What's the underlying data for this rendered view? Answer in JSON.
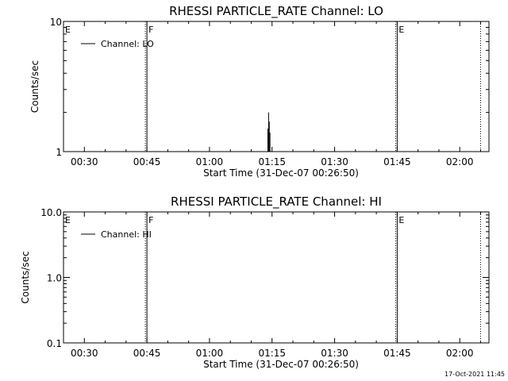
{
  "chart_data": [
    {
      "type": "line",
      "title": "RHESSI PARTICLE_RATE Channel: LO",
      "xlabel": "Start Time (31-Dec-07 00:26:50)",
      "ylabel": "Counts/sec",
      "yscale": "log",
      "ylim": [
        1,
        10
      ],
      "xlim": [
        "00:25",
        "02:07"
      ],
      "x_ticks": [
        "00:30",
        "00:45",
        "01:00",
        "01:15",
        "01:30",
        "01:45",
        "02:00"
      ],
      "y_ticks": [
        "1",
        "10"
      ],
      "legend_entry": "Channel: LO",
      "legend_position": "top-left",
      "series": [
        {
          "x": [
            "01:13:50",
            "01:14:00",
            "01:14:10",
            "01:14:20",
            "01:14:30",
            "01:14:40"
          ],
          "values": [
            1,
            1.5,
            2,
            1.7,
            1.4,
            1
          ]
        }
      ],
      "markers": [
        {
          "time": "00:25",
          "label": "E",
          "style": "dotted"
        },
        {
          "time": "00:45",
          "label": "F",
          "style": "solid"
        },
        {
          "time": "01:45",
          "label": "E",
          "style": "solid"
        },
        {
          "time": "02:05",
          "label": "",
          "style": "dotted"
        }
      ]
    },
    {
      "type": "line",
      "title": "RHESSI PARTICLE_RATE Channel: HI",
      "xlabel": "Start Time (31-Dec-07 00:26:50)",
      "ylabel": "Counts/sec",
      "yscale": "log",
      "ylim": [
        0.1,
        10
      ],
      "xlim": [
        "00:25",
        "02:07"
      ],
      "x_ticks": [
        "00:30",
        "00:45",
        "01:00",
        "01:15",
        "01:30",
        "01:45",
        "02:00"
      ],
      "y_ticks": [
        "0.1",
        "1.0",
        "10.0"
      ],
      "legend_entry": "Channel: HI",
      "legend_position": "top-left",
      "series": [],
      "markers": [
        {
          "time": "00:25",
          "label": "E",
          "style": "dotted"
        },
        {
          "time": "00:45",
          "label": "F",
          "style": "solid"
        },
        {
          "time": "01:45",
          "label": "E",
          "style": "solid"
        },
        {
          "time": "02:05",
          "label": "",
          "style": "dotted"
        }
      ]
    }
  ],
  "footer": {
    "timestamp": "17-Oct-2021 11:45"
  },
  "colors": {
    "background": "#ffffff",
    "foreground": "#000000"
  }
}
